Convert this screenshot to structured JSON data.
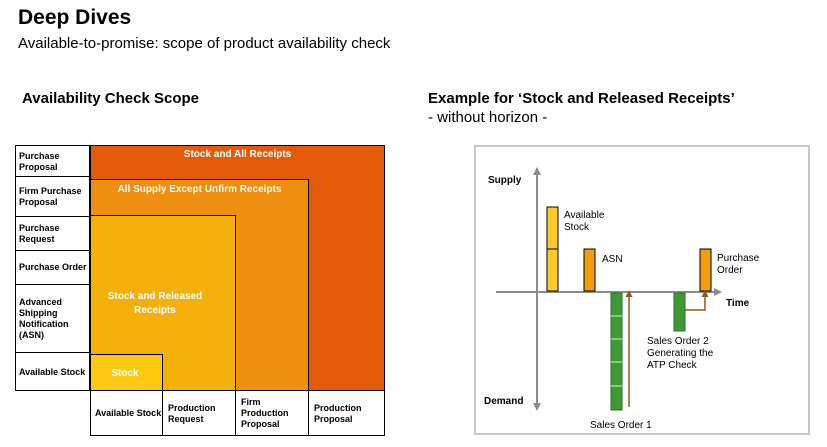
{
  "header": {
    "title": "Deep Dives",
    "subtitle": "Available-to-promise: scope of product availability check"
  },
  "left_panel": {
    "heading": "Availability Check Scope",
    "row_labels": [
      "Purchase Proposal",
      "Firm Purchase Proposal",
      "Purchase Request",
      "Purchase Order",
      "Advanced Shipping Notification (ASN)",
      "Available Stock"
    ],
    "column_labels": [
      "Available Stock",
      "Production Request",
      "Firm Production Proposal",
      "Production Proposal"
    ],
    "zones": [
      {
        "label": "Stock and All Receipts",
        "color": "#e35a0b"
      },
      {
        "label": "All Supply Except Unfirm Receipts",
        "color": "#ee8f12"
      },
      {
        "label": "Stock and Released Receipts",
        "color": "#f4b00a"
      },
      {
        "label": "Stock",
        "color": "#fcc90e"
      }
    ]
  },
  "right_panel": {
    "heading": "Example for ‘Stock and Released Receipts’",
    "subheading": "- without horizon -",
    "axis_labels": {
      "supply": "Supply",
      "demand": "Demand",
      "time": "Time"
    },
    "annotations": {
      "available_stock": "Available Stock",
      "asn": "ASN",
      "purchase_order": "Purchase Order",
      "sales_order_2": "Sales Order 2 Generating the ATP Check",
      "sales_order_1": "Sales Order 1"
    },
    "colors": {
      "available_stock": "#fcc92e",
      "asn": "#f59d0f",
      "purchase_order": "#f59d0f",
      "sales_order": "#3d9a35",
      "arrow": "#8b5a1e"
    }
  }
}
